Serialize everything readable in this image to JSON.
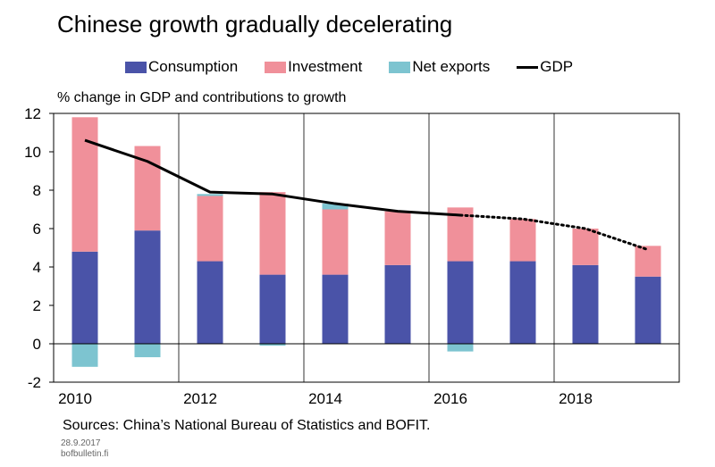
{
  "title": "Chinese growth gradually decelerating",
  "legend": [
    {
      "label": "Consumption",
      "color": "#4a53a8",
      "kind": "bar"
    },
    {
      "label": "Investment",
      "color": "#f0909a",
      "kind": "bar"
    },
    {
      "label": "Net exports",
      "color": "#7dc4d0",
      "kind": "bar"
    },
    {
      "label": "GDP",
      "color": "#000000",
      "kind": "line"
    }
  ],
  "source": "Sources: China’s National Bureau of Statistics and BOFIT.",
  "date": "28.9.2017",
  "site": "bofbulletin.fi",
  "chart_data": {
    "type": "bar",
    "stacked": true,
    "ylabel": "% change in GDP and contributions to growth",
    "ylim": [
      -2,
      12
    ],
    "yticks": [
      -2,
      0,
      2,
      4,
      6,
      8,
      10,
      12
    ],
    "categories": [
      "2010",
      "2011",
      "2012",
      "2013",
      "2014",
      "2015",
      "2016",
      "2017",
      "2018",
      "2019"
    ],
    "xtick_labels": [
      "2010",
      "",
      "2012",
      "",
      "2014",
      "",
      "2016",
      "",
      "2018",
      ""
    ],
    "series": [
      {
        "name": "Consumption",
        "color": "#4a53a8",
        "values": [
          4.8,
          5.9,
          4.3,
          3.6,
          3.6,
          4.1,
          4.3,
          4.3,
          4.1,
          3.5
        ]
      },
      {
        "name": "Investment",
        "color": "#f0909a",
        "values": [
          7.0,
          4.4,
          3.4,
          4.3,
          3.4,
          2.8,
          2.8,
          2.2,
          1.9,
          1.6
        ]
      },
      {
        "name": "Net exports",
        "color": "#7dc4d0",
        "values": [
          -1.2,
          -0.7,
          0.1,
          -0.1,
          0.3,
          0.0,
          -0.4,
          0.0,
          0.0,
          0.0
        ]
      }
    ],
    "gdp": {
      "name": "GDP",
      "color": "#000000",
      "values": [
        10.6,
        9.5,
        7.9,
        7.8,
        7.3,
        6.9,
        6.7,
        6.5,
        6.0,
        4.9
      ],
      "actual_through": "2016"
    },
    "grid": "vertical lines every two years",
    "legend_position": "top"
  }
}
